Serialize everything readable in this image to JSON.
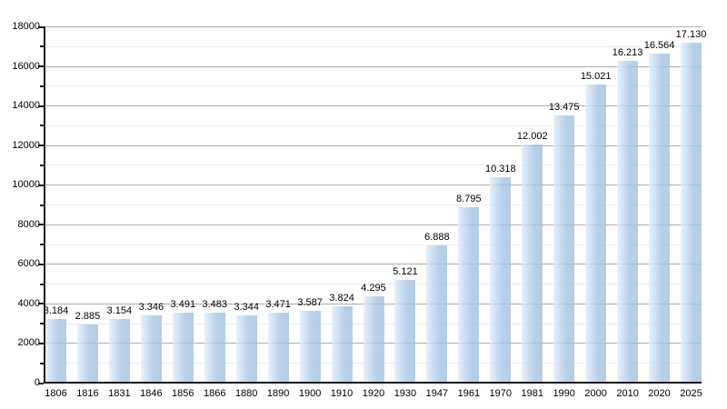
{
  "chart_data": {
    "type": "bar",
    "title": "",
    "xlabel": "",
    "ylabel": "",
    "legend": "none",
    "grid": "horizontal, major every 2000 and minor every 1000",
    "ylim": [
      0,
      18000
    ],
    "ytick_major_step": 2000,
    "ytick_minor_step": 1000,
    "ytick_labels": [
      "0",
      "2000",
      "4000",
      "6000",
      "8000",
      "10000",
      "12000",
      "14000",
      "16000",
      "18000"
    ],
    "categories": [
      "1806",
      "1816",
      "1831",
      "1846",
      "1856",
      "1866",
      "1880",
      "1890",
      "1900",
      "1910",
      "1920",
      "1930",
      "1947",
      "1961",
      "1970",
      "1981",
      "1990",
      "2000",
      "2010",
      "2020",
      "2025"
    ],
    "values": [
      3184,
      2885,
      3154,
      3346,
      3491,
      3483,
      3344,
      3471,
      3587,
      3824,
      4295,
      5121,
      6888,
      8795,
      10318,
      12002,
      13475,
      15021,
      16213,
      16564,
      17130
    ],
    "value_labels": [
      "3.184",
      "2.885",
      "3.154",
      "3.346",
      "3.491",
      "3.483",
      "3.344",
      "3.471",
      "3.587",
      "3.824",
      "4.295",
      "5.121",
      "6.888",
      "8.795",
      "10.318",
      "12.002",
      "13.475",
      "15.021",
      "16.213",
      "16.564",
      "17.130"
    ],
    "colors": {
      "bar_fill": "#a8c6e5",
      "bar_fill_light": "#e4eef8",
      "grid_major": "#adadad",
      "grid_minor": "#ededed",
      "axis": "#1a1a1a",
      "text": "#000000",
      "background": "#ffffff"
    }
  }
}
